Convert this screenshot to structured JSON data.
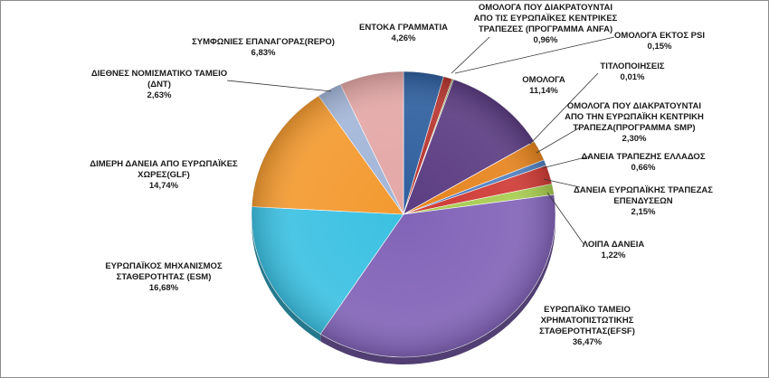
{
  "chart_data": {
    "type": "pie",
    "title": "",
    "legend": "none",
    "slices": [
      {
        "name": "ΕΝΤΟΚΑ ΓΡΑΜΜΑΤΙΑ",
        "value": 4.26,
        "label": "4,26%",
        "color": "#2e5f9e"
      },
      {
        "name": "ΟΜΟΛΟΓΑ ΠΟΥ ΔΙΑΚΡΑΤΟΥΝΤΑΙ ΑΠΟ ΤΙΣ ΕΥΡΩΠΑΪΚΕΣ ΚΕΝΤΡΙΚΕΣ ΤΡΑΠΕΖΕΣ (ΠΡΟΓΡΑΜΜΑ ANFA)",
        "value": 0.96,
        "label": "0,96%",
        "color": "#b7352f"
      },
      {
        "name": "ΟΜΟΛΟΓΑ ΕΚΤΟΣ PSI",
        "value": 0.15,
        "label": "0,15%",
        "color": "#7f9a3a"
      },
      {
        "name": "ΟΜΟΛΟΓΑ",
        "value": 11.14,
        "label": "11,14%",
        "color": "#5b3c82"
      },
      {
        "name": "ΤΙΤΛΟΠΟΙΗΣΕΙΣ",
        "value": 0.01,
        "label": "0,01%",
        "color": "#2f9bb8"
      },
      {
        "name": "ΟΜΟΛΟΓΑ ΠΟΥ ΔΙΑΚΡΑΤΟΥΝΤΑΙ ΑΠΟ ΤΗΝ ΕΥΡΩΠΑΪΚΗ ΚΕΝΤΡΙΚΗ ΤΡΑΠΕΖΑ(ΠΡΟΓΡΑΜΜΑ SMP)",
        "value": 2.3,
        "label": "2,30%",
        "color": "#e6841e"
      },
      {
        "name": "ΔΑΝΕΙΑ ΤΡΑΠΕΖΗΣ ΕΛΛΑΔΟΣ",
        "value": 0.66,
        "label": "0,66%",
        "color": "#4f7fc0"
      },
      {
        "name": "ΔΑΝΕΙΑ ΕΥΡΩΠΑΪΚΗΣ ΤΡΑΠΕΖΑΣ ΕΠΕΝΔΥΣΕΩΝ",
        "value": 2.15,
        "label": "2,15%",
        "color": "#cf3a35"
      },
      {
        "name": "ΛΟΙΠΑ ΔΑΝΕΙΑ",
        "value": 1.22,
        "label": "1,22%",
        "color": "#a7cc4f"
      },
      {
        "name": "ΕΥΡΩΠΑΪΚΟ ΤΑΜΕΙΟ ΧΡΗΜΑΤΟΠΙΣΤΩΤΙΚΗΣ ΣΤΑΘΕΡΟΤΗΤΑΣ(EFSF)",
        "value": 36.47,
        "label": "36,47%",
        "color": "#8264b8"
      },
      {
        "name": "ΕΥΡΩΠΑΪΚΟΣ ΜΗΧΑΝΙΣΜΟΣ ΣΤΑΘΕΡΟΤΗΤΑΣ (ESM)",
        "value": 16.68,
        "label": "16,68%",
        "color": "#3cc1e2"
      },
      {
        "name": "ΔΙΜΕΡΗ ΔΑΝΕΙΑ ΑΠΟ ΕΥΡΩΠΑΪΚΕΣ ΧΩΡΕΣ(GLF)",
        "value": 14.74,
        "label": "14,74%",
        "color": "#f39a30"
      },
      {
        "name": "ΔΙΕΘΝΕΣ ΝΟΜΙΣΜΑΤΙΚΟ ΤΑΜΕΙΟ (ΔΝΤ)",
        "value": 2.63,
        "label": "2,63%",
        "color": "#a3b6d8"
      },
      {
        "name": "ΣΥΜΦΩΝΙΕΣ ΕΠΑΝΑΓΟΡΑΣ(REPO)",
        "value": 6.83,
        "label": "6,83%",
        "color": "#e3a7a6"
      }
    ],
    "slice_labels": [
      {
        "lines": [
          "ΕΝΤΟΚΑ ΓΡΑΜΜΑΤΙΑ",
          "4,26%"
        ]
      },
      {
        "lines": [
          "ΟΜΟΛΟΓΑ ΠΟΥ ΔΙΑΚΡΑΤΟΥΝΤΑΙ",
          "ΑΠΟ ΤΙΣ ΕΥΡΩΠΑΪΚΕΣ ΚΕΝΤΡΙΚΕΣ",
          "ΤΡΑΠΕΖΕΣ (ΠΡΟΓΡΑΜΜΑ ANFA)",
          "0,96%"
        ]
      },
      {
        "lines": [
          "ΟΜΟΛΟΓΑ ΕΚΤΟΣ PSI",
          "0,15%"
        ]
      },
      {
        "lines": [
          "ΟΜΟΛΟΓΑ",
          "11,14%"
        ]
      },
      {
        "lines": [
          "ΤΙΤΛΟΠΟΙΗΣΕΙΣ",
          "0,01%"
        ]
      },
      {
        "lines": [
          "ΟΜΟΛΟΓΑ ΠΟΥ ΔΙΑΚΡΑΤΟΥΝΤΑΙ",
          "ΑΠΟ ΤΗΝ ΕΥΡΩΠΑΪΚΗ ΚΕΝΤΡΙΚΗ",
          "ΤΡΑΠΕΖΑ(ΠΡΟΓΡΑΜΜΑ SMP)",
          "2,30%"
        ]
      },
      {
        "lines": [
          "ΔΑΝΕΙΑ ΤΡΑΠΕΖΗΣ ΕΛΛΑΔΟΣ",
          "0,66%"
        ]
      },
      {
        "lines": [
          "ΔΑΝΕΙΑ ΕΥΡΩΠΑΪΚΗΣ ΤΡΑΠΕΖΑΣ",
          "ΕΠΕΝΔΥΣΕΩΝ",
          "2,15%"
        ]
      },
      {
        "lines": [
          "ΛΟΙΠΑ ΔΑΝΕΙΑ",
          "1,22%"
        ]
      },
      {
        "lines": [
          "ΕΥΡΩΠΑΪΚΟ ΤΑΜΕΙΟ",
          "ΧΡΗΜΑΤΟΠΙΣΤΩΤΙΚΗΣ",
          "ΣΤΑΘΕΡΟΤΗΤΑΣ(EFSF)",
          "36,47%"
        ]
      },
      {
        "lines": [
          "ΕΥΡΩΠΑΪΚΟΣ ΜΗΧΑΝΙΣΜΟΣ",
          "ΣΤΑΘΕΡΟΤΗΤΑΣ (ESM)",
          "16,68%"
        ]
      },
      {
        "lines": [
          "ΔΙΜΕΡΗ ΔΑΝΕΙΑ ΑΠΟ ΕΥΡΩΠΑΪΚΕΣ",
          "ΧΩΡΕΣ(GLF)",
          "14,74%"
        ]
      },
      {
        "lines": [
          "ΔΙΕΘΝΕΣ ΝΟΜΙΣΜΑΤΙΚΟ ΤΑΜΕΙΟ",
          "(ΔΝΤ)",
          "2,63%"
        ]
      },
      {
        "lines": [
          "ΣΥΜΦΩΝΙΕΣ ΕΠΑΝΑΓΟΡΑΣ(REPO)",
          "6,83%"
        ]
      }
    ]
  }
}
